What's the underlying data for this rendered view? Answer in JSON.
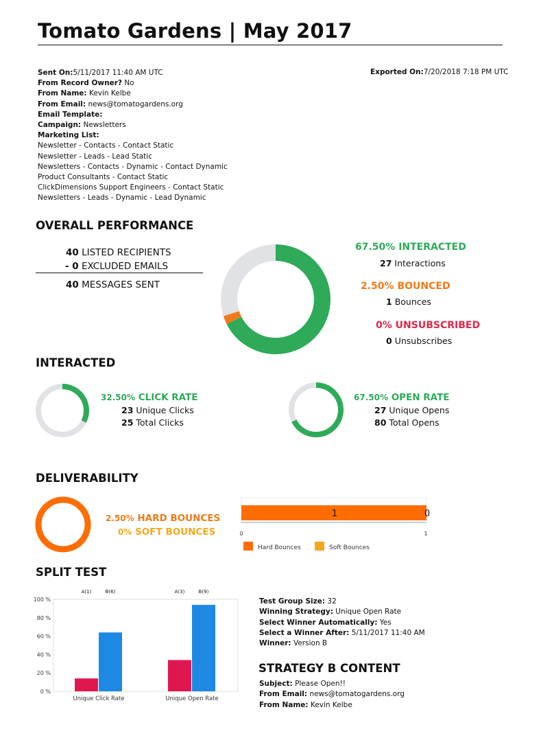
{
  "header": {
    "title": "Tomato Gardens | May 2017"
  },
  "meta": {
    "sent_on_label": "Sent On:",
    "sent_on": "5/11/2017 11:40 AM UTC",
    "owner_label": "From Record Owner?",
    "owner": "No",
    "from_name_label": "From Name:",
    "from_name": "Kevin Kelbe",
    "from_email_label": "From Email:",
    "from_email": "news@tomatogardens.org",
    "template_label": "Email Template:",
    "campaign_label": "Campaign:",
    "campaign": "Newsletters",
    "marketing_list_label": "Marketing List:",
    "marketing_lists": [
      "Newsletter - Contacts - Contact Static",
      "Newsletter - Leads - Lead Static",
      "Newsletters - Contacts - Dynamic - Contact Dynamic",
      "Product Consultants - Contact Static",
      "ClickDimensions Support Engineers - Contact Static",
      "Newsletters - Leads - Dynamic - Lead Dynamic"
    ],
    "exported_label": "Exported On:",
    "exported": "7/20/2018 7:18 PM UTC"
  },
  "overall": {
    "heading": "OVERALL PERFORMANCE",
    "listed_num": "40",
    "listed_label": "LISTED RECIPIENTS",
    "excluded_num": "- 0",
    "excluded_label": "EXCLUDED EMAILS",
    "sent_num": "40",
    "sent_label": "MESSAGES SENT",
    "interacted_pct": "67.50%",
    "interacted_label": "INTERACTED",
    "interactions_num": "27",
    "interactions_label": "Interactions",
    "bounced_pct": "2.50%",
    "bounced_label": "BOUNCED",
    "bounces_num": "1",
    "bounces_label": "Bounces",
    "unsub_pct": "0%",
    "unsub_label": "UNSUBSCRIBED",
    "unsubs_num": "0",
    "unsubs_label": "Unsubscribes",
    "donut": {
      "interacted": 0.675,
      "bounced": 0.025,
      "unsubscribed": 0
    }
  },
  "interacted": {
    "heading": "INTERACTED",
    "click_pct": "32.50%",
    "click_label": "CLICK RATE",
    "unique_clicks_num": "23",
    "unique_clicks_label": "Unique Clicks",
    "total_clicks_num": "25",
    "total_clicks_label": "Total Clicks",
    "click_fraction": 0.325,
    "open_pct": "67.50%",
    "open_label": "OPEN RATE",
    "unique_opens_num": "27",
    "unique_opens_label": "Unique Opens",
    "total_opens_num": "80",
    "total_opens_label": "Total Opens",
    "open_fraction": 0.675
  },
  "deliverability": {
    "heading": "DELIVERABILITY",
    "hard_pct": "2.50%",
    "hard_label": "HARD BOUNCES",
    "soft_pct": "0%",
    "soft_label": "SOFT BOUNCES",
    "hard_fraction": 1.0
  },
  "colors": {
    "green": "#2eaa59",
    "orange": "#f07a1a",
    "bar_orange": "#ff6d00",
    "red": "#e0264a",
    "amber": "#f5a81e",
    "grey_track": "#e0e2e5",
    "blue": "#1e88e5",
    "crimson": "#e0174f"
  },
  "bounce_bar": {
    "chart_data": {
      "type": "bar",
      "orientation": "horizontal",
      "series": [
        {
          "name": "Hard Bounces",
          "values": [
            1
          ]
        },
        {
          "name": "Soft Bounces",
          "values": [
            0
          ]
        }
      ],
      "data_labels": [
        "1",
        "0"
      ],
      "xlim": [
        0,
        1
      ],
      "xticks": [
        "0",
        "1"
      ],
      "legend": [
        "Hard Bounces",
        "Soft Bounces"
      ]
    }
  },
  "split_test": {
    "heading": "SPLIT TEST",
    "chart_data": {
      "type": "bar",
      "categories": [
        "Unique Click Rate",
        "Unique Open Rate"
      ],
      "series": [
        {
          "name": "A",
          "values": [
            14,
            34
          ]
        },
        {
          "name": "B",
          "values": [
            64,
            94
          ]
        }
      ],
      "top_labels": [
        [
          "A(1)",
          "B(6)"
        ],
        [
          "A(3)",
          "B(9)"
        ]
      ],
      "yticks": [
        "100 %",
        "80 %",
        "60 %",
        "40 %",
        "20 %",
        "0 %"
      ],
      "ylim": [
        0,
        100
      ]
    },
    "details": {
      "group_size_label": "Test Group Size:",
      "group_size": "32",
      "strategy_label": "Winning Strategy:",
      "strategy": "Unique Open Rate",
      "auto_label": "Select Winner Automatically:",
      "auto": "Yes",
      "after_label": "Select a Winner After:",
      "after": "5/11/2017 11:40 AM",
      "winner_label": "Winner:",
      "winner": "Version B"
    },
    "strategy_heading": "STRATEGY B CONTENT",
    "content": {
      "subject_label": "Subject:",
      "subject": "Please Open!!",
      "from_email_label": "From Email:",
      "from_email": "news@tomatogardens.org",
      "from_name_label": "From Name:",
      "from_name": "Kevin Kelbe"
    }
  }
}
